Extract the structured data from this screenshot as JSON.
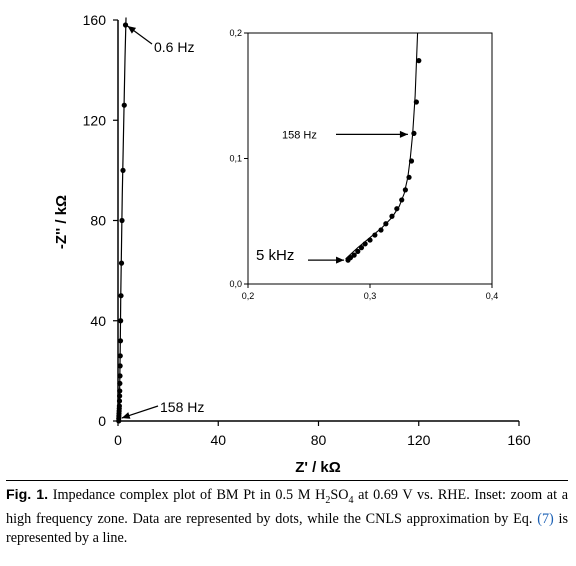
{
  "chart_data": [
    {
      "type": "scatter",
      "xlabel": "Z' / kΩ",
      "ylabel": "-Z'' / kΩ",
      "xlim": [
        0,
        160
      ],
      "ylim": [
        0,
        160
      ],
      "x_ticks": [
        "0",
        "40",
        "80",
        "120",
        "160"
      ],
      "y_ticks": [
        "0",
        "40",
        "80",
        "120",
        "160"
      ],
      "series": [
        {
          "style": "dots",
          "points": [
            [
              0.3,
              0.02
            ],
            [
              0.3,
              1
            ],
            [
              0.35,
              2
            ],
            [
              0.4,
              3
            ],
            [
              0.45,
              4
            ],
            [
              0.5,
              5
            ],
            [
              0.55,
              6
            ],
            [
              0.6,
              8
            ],
            [
              0.65,
              10
            ],
            [
              0.7,
              12
            ],
            [
              0.75,
              15
            ],
            [
              0.8,
              18
            ],
            [
              0.85,
              22
            ],
            [
              0.9,
              26
            ],
            [
              1.0,
              32
            ],
            [
              1.05,
              40
            ],
            [
              1.2,
              50
            ],
            [
              1.4,
              63
            ],
            [
              1.6,
              80
            ],
            [
              2.0,
              100
            ],
            [
              2.5,
              126
            ],
            [
              3.0,
              158
            ]
          ]
        },
        {
          "style": "line",
          "points": [
            [
              0.3,
              0.0
            ],
            [
              0.5,
              5
            ],
            [
              0.7,
              15
            ],
            [
              0.9,
              30
            ],
            [
              1.1,
              50
            ],
            [
              1.4,
              70
            ],
            [
              1.7,
              90
            ],
            [
              2.1,
              110
            ],
            [
              2.5,
              130
            ],
            [
              2.8,
              145
            ],
            [
              3.2,
              162
            ]
          ]
        }
      ],
      "annotations": [
        {
          "text": "0.6 Hz",
          "x": 3.0,
          "y": 158
        },
        {
          "text": "158 Hz",
          "x": 0.3,
          "y": 0.3
        }
      ]
    },
    {
      "type": "scatter",
      "inset": true,
      "xlim": [
        0.2,
        0.4
      ],
      "ylim": [
        0.0,
        0.2
      ],
      "x_ticks": [
        "0,2",
        "0,3",
        "0,4"
      ],
      "y_ticks": [
        "0,0",
        "0,1",
        "0,2"
      ],
      "series": [
        {
          "style": "dots",
          "points": [
            [
              0.282,
              0.019
            ],
            [
              0.284,
              0.021
            ],
            [
              0.287,
              0.023
            ],
            [
              0.29,
              0.026
            ],
            [
              0.293,
              0.029
            ],
            [
              0.296,
              0.032
            ],
            [
              0.3,
              0.035
            ],
            [
              0.304,
              0.039
            ],
            [
              0.309,
              0.043
            ],
            [
              0.313,
              0.048
            ],
            [
              0.318,
              0.054
            ],
            [
              0.322,
              0.06
            ],
            [
              0.326,
              0.067
            ],
            [
              0.329,
              0.075
            ],
            [
              0.332,
              0.085
            ],
            [
              0.334,
              0.098
            ],
            [
              0.336,
              0.12
            ],
            [
              0.338,
              0.145
            ],
            [
              0.34,
              0.178
            ]
          ]
        },
        {
          "style": "line",
          "points": [
            [
              0.28,
              0.02
            ],
            [
              0.29,
              0.029
            ],
            [
              0.3,
              0.037
            ],
            [
              0.31,
              0.045
            ],
            [
              0.318,
              0.053
            ],
            [
              0.324,
              0.062
            ],
            [
              0.328,
              0.072
            ],
            [
              0.331,
              0.085
            ],
            [
              0.333,
              0.1
            ],
            [
              0.335,
              0.12
            ],
            [
              0.337,
              0.15
            ],
            [
              0.338,
              0.175
            ],
            [
              0.339,
              0.2
            ]
          ]
        }
      ],
      "annotations": [
        {
          "text": "158 Hz",
          "x": 0.336,
          "y": 0.12
        },
        {
          "text": "5 kHz",
          "x": 0.282,
          "y": 0.019
        }
      ]
    }
  ],
  "caption": {
    "label": "Fig. 1.",
    "text_before_sub": " Impedance complex plot of BM Pt in 0.5 M H",
    "sub1": "2",
    "text_mid": "SO",
    "sub2": "4",
    "text_after_sub": " at 0.69 V vs. RHE. Inset: zoom at a high frequency zone. Data are represented by dots, while the CNLS approximation by Eq. ",
    "eq_ref": "(7)",
    "text_end": " is represented by a line."
  }
}
